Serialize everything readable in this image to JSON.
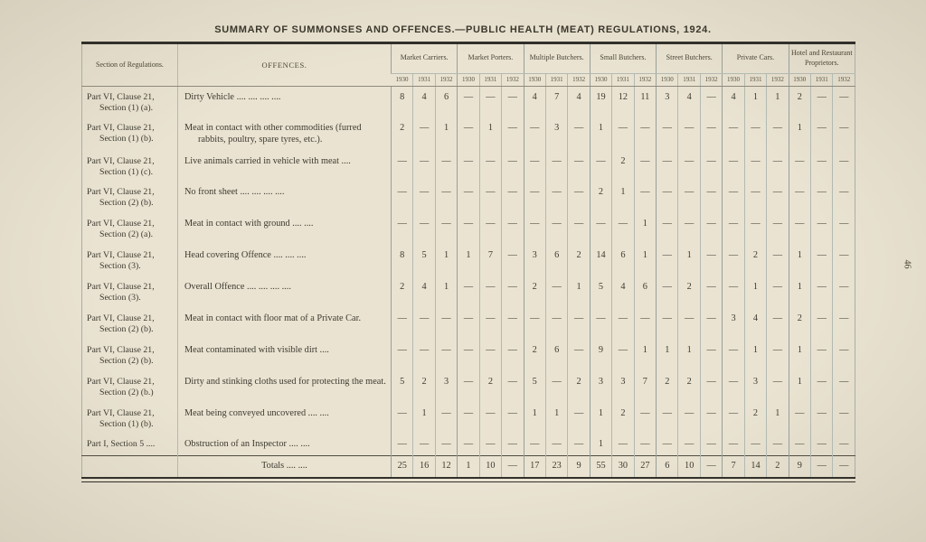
{
  "title": "SUMMARY OF SUMMONSES AND OFFENCES.—PUBLIC HEALTH (MEAT) REGULATIONS, 1924.",
  "page_number": "46",
  "table": {
    "headers": {
      "section": "Section of Regulations.",
      "offences": "OFFENCES.",
      "groups": [
        "Market Carriers.",
        "Market Porters.",
        "Multiple Butchers.",
        "Small Butchers.",
        "Street Butchers.",
        "Private Cars.",
        "Hotel and Restaurant Proprietors."
      ],
      "years": [
        "1930",
        "1931",
        "1932"
      ]
    },
    "rows": [
      {
        "section": "Part VI, Clause 21, Section (1) (a).",
        "offence": "Dirty Vehicle .... .... .... ....",
        "values": [
          "8",
          "4",
          "6",
          "—",
          "—",
          "—",
          "4",
          "7",
          "4",
          "19",
          "12",
          "11",
          "3",
          "4",
          "—",
          "4",
          "1",
          "1",
          "2",
          "—",
          "—"
        ]
      },
      {
        "section": "Part VI, Clause 21, Section (1) (b).",
        "offence": "Meat in contact with other commodities (furred rabbits, poultry, spare tyres, etc.).",
        "values": [
          "2",
          "—",
          "1",
          "—",
          "1",
          "—",
          "—",
          "3",
          "—",
          "1",
          "—",
          "—",
          "—",
          "—",
          "—",
          "—",
          "—",
          "—",
          "1",
          "—",
          "—"
        ]
      },
      {
        "section": "Part VI, Clause 21, Section (1) (c).",
        "offence": "Live animals carried in vehicle with meat ....",
        "values": [
          "—",
          "—",
          "—",
          "—",
          "—",
          "—",
          "—",
          "—",
          "—",
          "—",
          "2",
          "—",
          "—",
          "—",
          "—",
          "—",
          "—",
          "—",
          "—",
          "—",
          "—"
        ]
      },
      {
        "section": "Part VI, Clause 21, Section (2) (b).",
        "offence": "No front sheet .... .... .... ....",
        "values": [
          "—",
          "—",
          "—",
          "—",
          "—",
          "—",
          "—",
          "—",
          "—",
          "2",
          "1",
          "—",
          "—",
          "—",
          "—",
          "—",
          "—",
          "—",
          "—",
          "—",
          "—"
        ]
      },
      {
        "section": "Part VI, Clause 21, Section (2) (a).",
        "offence": "Meat in contact with ground .... ....",
        "values": [
          "—",
          "—",
          "—",
          "—",
          "—",
          "—",
          "—",
          "—",
          "—",
          "—",
          "—",
          "1",
          "—",
          "—",
          "—",
          "—",
          "—",
          "—",
          "—",
          "—",
          "—"
        ]
      },
      {
        "section": "Part VI, Clause 21, Section (3).",
        "offence": "Head covering Offence .... .... ....",
        "values": [
          "8",
          "5",
          "1",
          "1",
          "7",
          "—",
          "3",
          "6",
          "2",
          "14",
          "6",
          "1",
          "—",
          "1",
          "—",
          "—",
          "2",
          "—",
          "1",
          "—",
          "—"
        ]
      },
      {
        "section": "Part VI, Clause 21, Section (3).",
        "offence": "Overall Offence .... .... .... ....",
        "values": [
          "2",
          "4",
          "1",
          "—",
          "—",
          "—",
          "2",
          "—",
          "1",
          "5",
          "4",
          "6",
          "—",
          "2",
          "—",
          "—",
          "1",
          "—",
          "1",
          "—",
          "—"
        ]
      },
      {
        "section": "Part VI, Clause 21, Section (2) (b).",
        "offence": "Meat in contact with floor mat of a Private Car.",
        "values": [
          "—",
          "—",
          "—",
          "—",
          "—",
          "—",
          "—",
          "—",
          "—",
          "—",
          "—",
          "—",
          "—",
          "—",
          "—",
          "3",
          "4",
          "—",
          "2",
          "—",
          "—"
        ]
      },
      {
        "section": "Part VI, Clause 21, Section (2) (b).",
        "offence": "Meat contaminated with visible dirt ....",
        "values": [
          "—",
          "—",
          "—",
          "—",
          "—",
          "—",
          "2",
          "6",
          "—",
          "9",
          "—",
          "1",
          "1",
          "1",
          "—",
          "—",
          "1",
          "—",
          "1",
          "—",
          "—"
        ]
      },
      {
        "section": "Part VI, Clause 21, Section (2) (b.)",
        "offence": "Dirty and stinking cloths used for protecting the meat.",
        "values": [
          "5",
          "2",
          "3",
          "—",
          "2",
          "—",
          "5",
          "—",
          "2",
          "3",
          "3",
          "7",
          "2",
          "2",
          "—",
          "—",
          "3",
          "—",
          "1",
          "—",
          "—"
        ]
      },
      {
        "section": "Part VI, Clause 21, Section (1) (b).",
        "offence": "Meat being conveyed uncovered .... ....",
        "values": [
          "—",
          "1",
          "—",
          "—",
          "—",
          "—",
          "1",
          "1",
          "—",
          "1",
          "2",
          "—",
          "—",
          "—",
          "—",
          "—",
          "2",
          "1",
          "—",
          "—",
          "—"
        ]
      },
      {
        "section": "Part I, Section 5 ....",
        "offence": "Obstruction of an Inspector .... ....",
        "values": [
          "—",
          "—",
          "—",
          "—",
          "—",
          "—",
          "—",
          "—",
          "—",
          "1",
          "—",
          "—",
          "—",
          "—",
          "—",
          "—",
          "—",
          "—",
          "—",
          "—",
          "—"
        ]
      }
    ],
    "totals": {
      "label": "Totals .... ....",
      "values": [
        "25",
        "16",
        "12",
        "1",
        "10",
        "—",
        "17",
        "23",
        "9",
        "55",
        "30",
        "27",
        "6",
        "10",
        "—",
        "7",
        "14",
        "2",
        "9",
        "—",
        "—"
      ]
    }
  }
}
